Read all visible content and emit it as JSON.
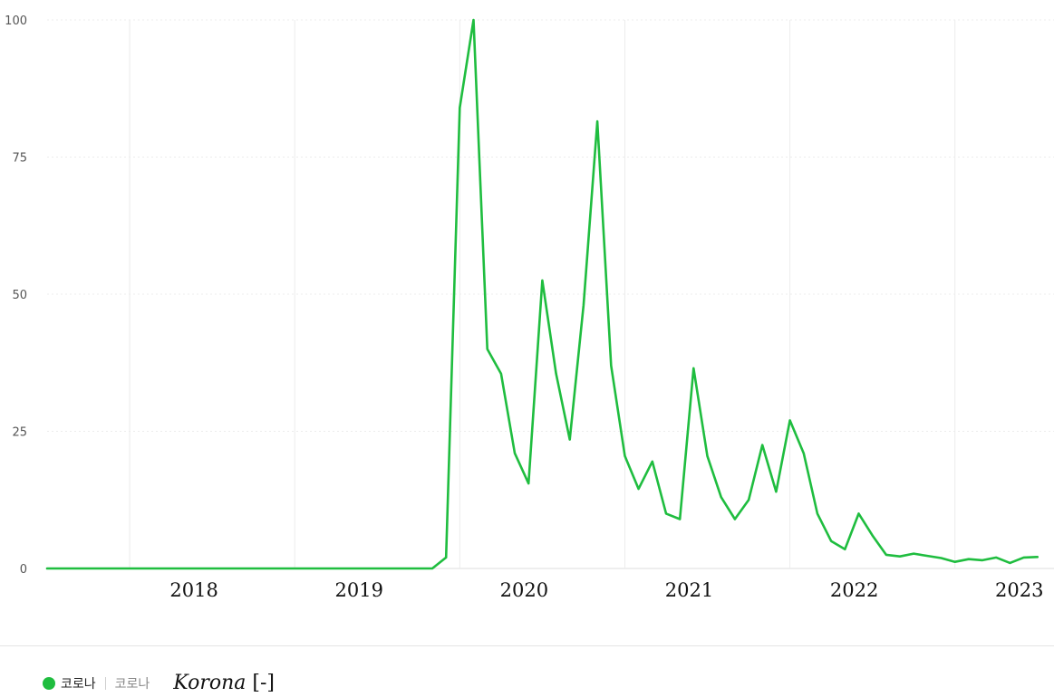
{
  "chart_data": {
    "type": "line",
    "title": "",
    "xlabel": "",
    "ylabel": "",
    "ylim": [
      0,
      100
    ],
    "y_ticks": [
      "0",
      "25",
      "50",
      "75",
      "100"
    ],
    "x_ticks": [
      "2018",
      "2019",
      "2020",
      "2021",
      "2022",
      "2023"
    ],
    "grid": true,
    "legend_position": "bottom",
    "series": [
      {
        "name": "코로나",
        "color": "#1fbd3f",
        "x": [
          "2017-07",
          "2017-08",
          "2017-09",
          "2017-10",
          "2017-11",
          "2017-12",
          "2018-01",
          "2018-02",
          "2018-03",
          "2018-04",
          "2018-05",
          "2018-06",
          "2018-07",
          "2018-08",
          "2018-09",
          "2018-10",
          "2018-11",
          "2018-12",
          "2019-01",
          "2019-02",
          "2019-03",
          "2019-04",
          "2019-05",
          "2019-06",
          "2019-07",
          "2019-08",
          "2019-09",
          "2019-10",
          "2019-11",
          "2019-12",
          "2020-01",
          "2020-02",
          "2020-03",
          "2020-04",
          "2020-05",
          "2020-06",
          "2020-07",
          "2020-08",
          "2020-09",
          "2020-10",
          "2020-11",
          "2020-12",
          "2021-01",
          "2021-02",
          "2021-03",
          "2021-04",
          "2021-05",
          "2021-06",
          "2021-07",
          "2021-08",
          "2021-09",
          "2021-10",
          "2021-11",
          "2021-12",
          "2022-01",
          "2022-02",
          "2022-03",
          "2022-04",
          "2022-05",
          "2022-06",
          "2022-07",
          "2022-08",
          "2022-09",
          "2022-10",
          "2022-11",
          "2022-12",
          "2023-01",
          "2023-02",
          "2023-03",
          "2023-04",
          "2023-05",
          "2023-06",
          "2023-07"
        ],
        "values": [
          0,
          0,
          0,
          0,
          0,
          0,
          0,
          0,
          0,
          0,
          0,
          0,
          0,
          0,
          0,
          0,
          0,
          0,
          0,
          0,
          0,
          0,
          0,
          0,
          0,
          0,
          0,
          0,
          0,
          2,
          84,
          100,
          40,
          35.5,
          21,
          15.5,
          52.5,
          35.5,
          23.5,
          48,
          81.5,
          37,
          20.5,
          14.5,
          19.5,
          10,
          9,
          36.5,
          20.5,
          13,
          9,
          12.5,
          22.5,
          14,
          27,
          21,
          10,
          5,
          3.5,
          10,
          6,
          2.5,
          2.2,
          2.7,
          2.3,
          1.9,
          1.2,
          1.7,
          1.5,
          2,
          1,
          2,
          2.1
        ]
      }
    ]
  },
  "legend": {
    "series_name": "코로나",
    "keyword": "코로나",
    "note_italic": "Korona",
    "note_suffix": " [-]"
  }
}
